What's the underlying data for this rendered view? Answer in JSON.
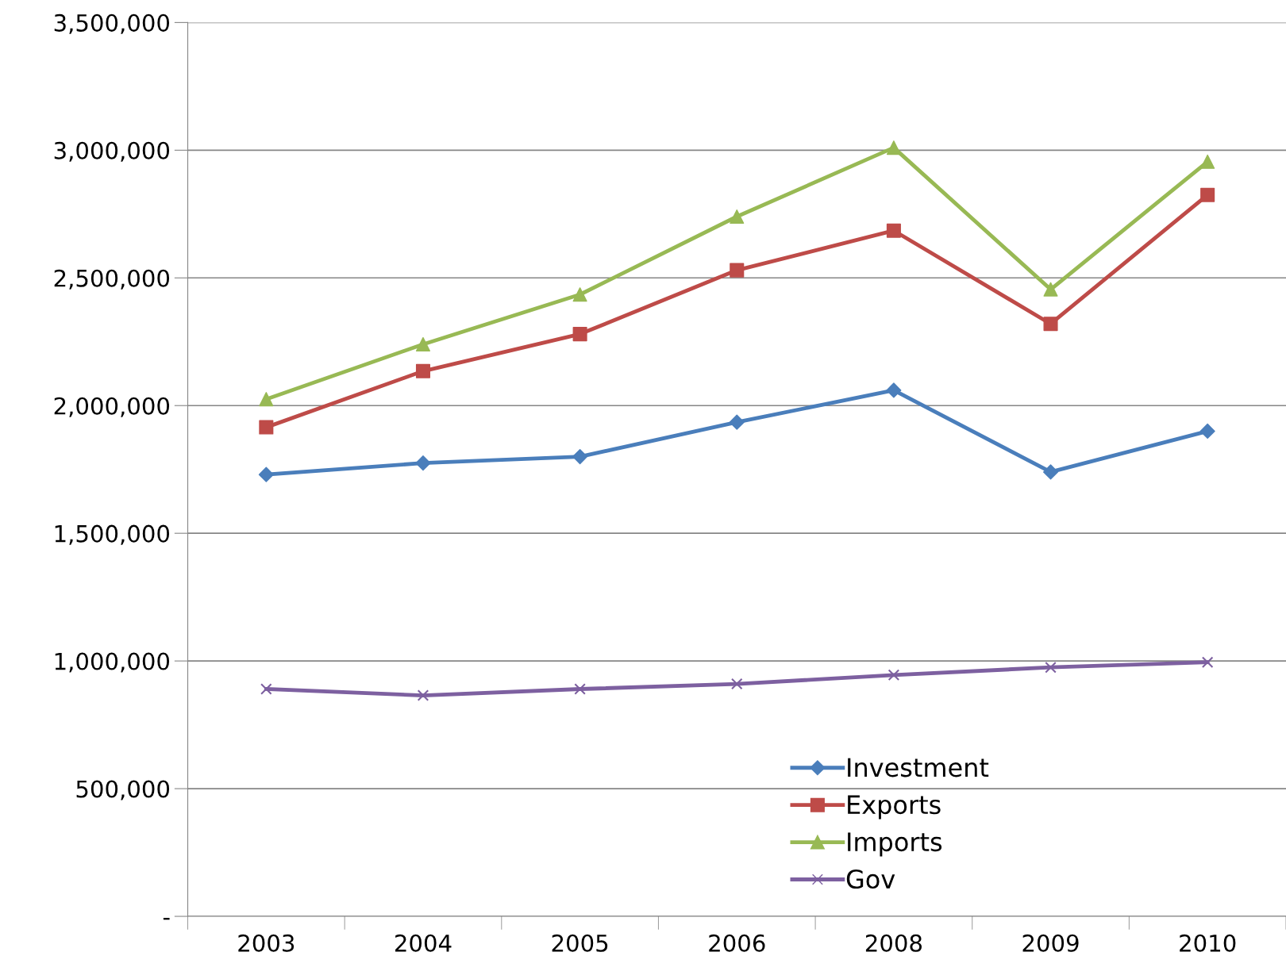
{
  "chart_data": {
    "type": "line",
    "categories": [
      "2003",
      "2004",
      "2005",
      "2006",
      "2008",
      "2009",
      "2010"
    ],
    "series": [
      {
        "name": "Investment",
        "color": "#4a7ebb",
        "marker": "diamond",
        "values": [
          1730000,
          1775000,
          1800000,
          1935000,
          2060000,
          1740000,
          1900000
        ]
      },
      {
        "name": "Exports",
        "color": "#be4b48",
        "marker": "square",
        "values": [
          1915000,
          2135000,
          2280000,
          2530000,
          2685000,
          2320000,
          2825000
        ]
      },
      {
        "name": "Imports",
        "color": "#98b954",
        "marker": "triangle",
        "values": [
          2025000,
          2240000,
          2435000,
          2740000,
          3010000,
          2455000,
          2955000
        ]
      },
      {
        "name": "Gov",
        "color": "#7d60a0",
        "marker": "cross",
        "values": [
          890000,
          865000,
          890000,
          910000,
          945000,
          975000,
          995000
        ]
      }
    ],
    "ylim": [
      0,
      3500000
    ],
    "yticks": [
      {
        "value": 0,
        "label": "-"
      },
      {
        "value": 500000,
        "label": "500,000"
      },
      {
        "value": 1000000,
        "label": "1,000,000"
      },
      {
        "value": 1500000,
        "label": "1,500,000"
      },
      {
        "value": 2000000,
        "label": "2,000,000"
      },
      {
        "value": 2500000,
        "label": "2,500,000"
      },
      {
        "value": 3000000,
        "label": "3,000,000"
      },
      {
        "value": 3500000,
        "label": "3,500,000"
      }
    ],
    "grid": "y",
    "legend": "bottom",
    "line_style": "solid"
  }
}
